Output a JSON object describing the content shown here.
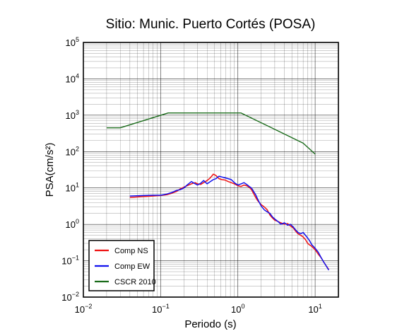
{
  "chart_data": {
    "type": "line",
    "title": "Sitio: Munic. Puerto Cortés (POSA)",
    "xlabel": "Periodo (s)",
    "ylabel": "PSA(cm/s²)",
    "xscale": "log",
    "yscale": "log",
    "xlim": [
      0.01,
      20
    ],
    "ylim": [
      0.01,
      100000
    ],
    "grid": true,
    "legend_position": "bottom-left",
    "x_tick_labels": [
      {
        "base": "10",
        "exp": "−2"
      },
      {
        "base": "10",
        "exp": "−1"
      },
      {
        "base": "10",
        "exp": "0"
      },
      {
        "base": "10",
        "exp": "1"
      }
    ],
    "y_tick_labels": [
      {
        "base": "10",
        "exp": "−2"
      },
      {
        "base": "10",
        "exp": "−1"
      },
      {
        "base": "10",
        "exp": "0"
      },
      {
        "base": "10",
        "exp": "1"
      },
      {
        "base": "10",
        "exp": "2"
      },
      {
        "base": "10",
        "exp": "3"
      },
      {
        "base": "10",
        "exp": "4"
      },
      {
        "base": "10",
        "exp": "5"
      }
    ],
    "series": [
      {
        "name": "Comp NS",
        "color": "#ee1111",
        "x": [
          0.04,
          0.06,
          0.08,
          0.1,
          0.12,
          0.14,
          0.16,
          0.18,
          0.2,
          0.22,
          0.25,
          0.28,
          0.3,
          0.33,
          0.36,
          0.4,
          0.44,
          0.48,
          0.52,
          0.57,
          0.62,
          0.68,
          0.75,
          0.82,
          0.9,
          1.0,
          1.1,
          1.2,
          1.3,
          1.4,
          1.5,
          1.6,
          1.7,
          1.8,
          2.0,
          2.2,
          2.4,
          2.6,
          2.8,
          3.0,
          3.3,
          3.6,
          4.0,
          4.4,
          4.8,
          5.2,
          5.6,
          6.0,
          6.5,
          7.0,
          7.5,
          8.0,
          8.5,
          9.0,
          10.0,
          11.0,
          12.0,
          13.0,
          14.0,
          15.0
        ],
        "values": [
          5.5,
          5.8,
          6.0,
          6.2,
          6.5,
          7.2,
          8.0,
          9.5,
          10.5,
          11.5,
          13.0,
          14.0,
          13.0,
          12.5,
          14.0,
          16.0,
          19.0,
          24.0,
          22.0,
          18.0,
          17.0,
          16.5,
          15.0,
          14.0,
          13.0,
          11.5,
          11.0,
          12.0,
          11.5,
          10.5,
          9.0,
          7.0,
          5.5,
          4.5,
          3.5,
          3.0,
          2.5,
          1.8,
          1.5,
          1.3,
          1.2,
          1.1,
          1.0,
          1.05,
          0.9,
          0.8,
          0.65,
          0.55,
          0.5,
          0.45,
          0.38,
          0.3,
          0.27,
          0.25,
          0.2,
          0.15,
          0.12,
          0.09,
          0.07,
          0.058
        ]
      },
      {
        "name": "Comp EW",
        "color": "#1111ee",
        "x": [
          0.04,
          0.06,
          0.08,
          0.1,
          0.12,
          0.14,
          0.16,
          0.18,
          0.2,
          0.22,
          0.25,
          0.28,
          0.3,
          0.33,
          0.36,
          0.4,
          0.44,
          0.48,
          0.52,
          0.57,
          0.62,
          0.68,
          0.75,
          0.82,
          0.9,
          1.0,
          1.1,
          1.2,
          1.3,
          1.4,
          1.5,
          1.6,
          1.7,
          1.8,
          2.0,
          2.2,
          2.4,
          2.6,
          2.8,
          3.0,
          3.3,
          3.6,
          4.0,
          4.4,
          4.8,
          5.2,
          5.6,
          6.0,
          6.5,
          7.0,
          7.5,
          8.0,
          8.5,
          9.0,
          10.0,
          11.0,
          12.0,
          13.0,
          14.0,
          15.0
        ],
        "values": [
          6.0,
          6.2,
          6.3,
          6.3,
          6.8,
          7.5,
          8.5,
          9.0,
          10.0,
          12.0,
          15.0,
          13.0,
          12.0,
          13.5,
          16.0,
          13.0,
          15.0,
          17.0,
          18.0,
          21.0,
          20.0,
          19.0,
          18.0,
          17.0,
          14.0,
          12.0,
          13.0,
          14.0,
          12.5,
          11.0,
          10.0,
          8.0,
          6.5,
          5.0,
          3.2,
          2.5,
          2.2,
          2.0,
          1.6,
          1.4,
          1.2,
          1.0,
          1.1,
          0.95,
          1.0,
          0.85,
          0.7,
          0.6,
          0.55,
          0.6,
          0.5,
          0.42,
          0.35,
          0.28,
          0.22,
          0.17,
          0.12,
          0.09,
          0.07,
          0.055
        ]
      },
      {
        "name": "CSCR 2010",
        "color": "#1a6b1a",
        "x": [
          0.02,
          0.03,
          0.125,
          0.6,
          1.1,
          7.0,
          10.0
        ],
        "values": [
          450,
          450,
          1150,
          1150,
          1150,
          170,
          85
        ]
      }
    ]
  }
}
